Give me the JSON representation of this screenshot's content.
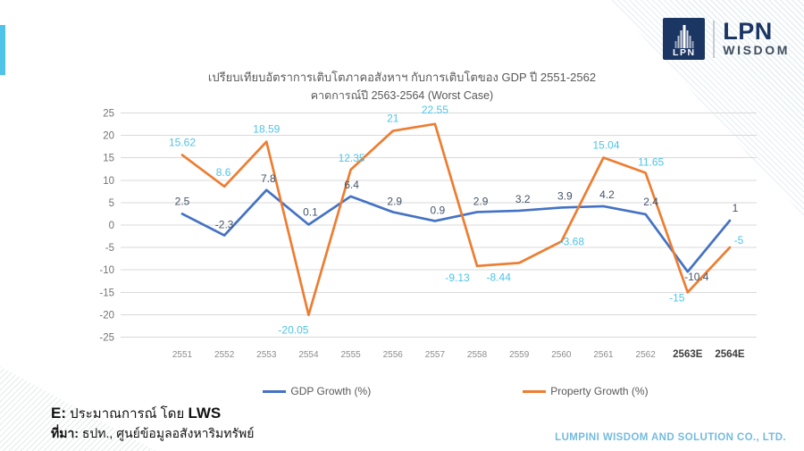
{
  "logo": {
    "mark": "LPN",
    "name": "LPN",
    "subname": "WISDOM"
  },
  "chart_data": {
    "type": "line",
    "title": "เปรียบเทียบอัตราการเติบโตภาคอสังหาฯ กับการเติบโตของ GDP ปี 2551-2562",
    "subtitle": "คาดการณ์ปี 2563-2564 (Worst Case)",
    "categories": [
      "2551",
      "2552",
      "2553",
      "2554",
      "2555",
      "2556",
      "2557",
      "2558",
      "2559",
      "2560",
      "2561",
      "2562",
      "2563E",
      "2564E"
    ],
    "series": [
      {
        "name": "GDP Growth (%)",
        "color": "#4472C4",
        "label_color": "#44546A",
        "values": [
          2.5,
          -2.3,
          7.8,
          0.1,
          6.4,
          2.9,
          0.9,
          2.9,
          3.2,
          3.9,
          4.2,
          2.4,
          -10.4,
          1
        ],
        "labels": [
          "2.5",
          "-2.3",
          "7.8",
          "0.1",
          "6.4",
          "2.9",
          "0.9",
          "2.9",
          "3.2",
          "3.9",
          "4.2",
          "2.4",
          "-10.4",
          "1"
        ],
        "label_offsets": [
          [
            0,
            -10
          ],
          [
            0,
            -8
          ],
          [
            2,
            -9
          ],
          [
            2,
            -10
          ],
          [
            1,
            -9
          ],
          [
            2,
            -8
          ],
          [
            3,
            -8
          ],
          [
            4,
            -8
          ],
          [
            4,
            -9
          ],
          [
            4,
            -9
          ],
          [
            4,
            -9
          ],
          [
            6,
            -10
          ],
          [
            10,
            10
          ],
          [
            6,
            -10
          ]
        ]
      },
      {
        "name": "Property Growth (%)",
        "color": "#ED7D31",
        "label_color": "#4FC3E8",
        "values": [
          15.62,
          8.6,
          18.59,
          -20.05,
          12.35,
          21,
          22.55,
          -9.13,
          -8.44,
          -3.68,
          15.04,
          11.65,
          -15,
          -5
        ],
        "labels": [
          "15.62",
          "8.6",
          "18.59",
          "-20.05",
          "12.35",
          "21",
          "22.55",
          "-9.13",
          "-8.44",
          "-3.68",
          "15.04",
          "11.65",
          "-15",
          "-5"
        ],
        "label_offsets": [
          [
            0,
            -10
          ],
          [
            -1,
            -12
          ],
          [
            0,
            -10
          ],
          [
            -17,
            21
          ],
          [
            1,
            -9
          ],
          [
            0,
            -10
          ],
          [
            0,
            -12
          ],
          [
            -22,
            17
          ],
          [
            -23,
            20
          ],
          [
            12,
            4
          ],
          [
            3,
            -10
          ],
          [
            6,
            -8
          ],
          [
            -12,
            10
          ],
          [
            10,
            -4
          ]
        ]
      }
    ],
    "ylim": [
      -25,
      25
    ],
    "ytick_step": 5,
    "grid": true,
    "grid_color": "#D9D9D9",
    "axis_text_color": "#8C8C8C",
    "ytick_text_color": "#737373",
    "forecast_text_color": "#3F3F3F",
    "legend_position": "bottom"
  },
  "footer": {
    "note_prefix": "E:",
    "note_text": "ประมาณการณ์ โดย",
    "note_suffix": "LWS",
    "source_prefix": "ที่มา:",
    "source_text": "ธปท., ศูนย์ข้อมูลอสังหาริมทรัพย์",
    "company": "LUMPINI WISDOM AND SOLUTION CO., LTD."
  }
}
